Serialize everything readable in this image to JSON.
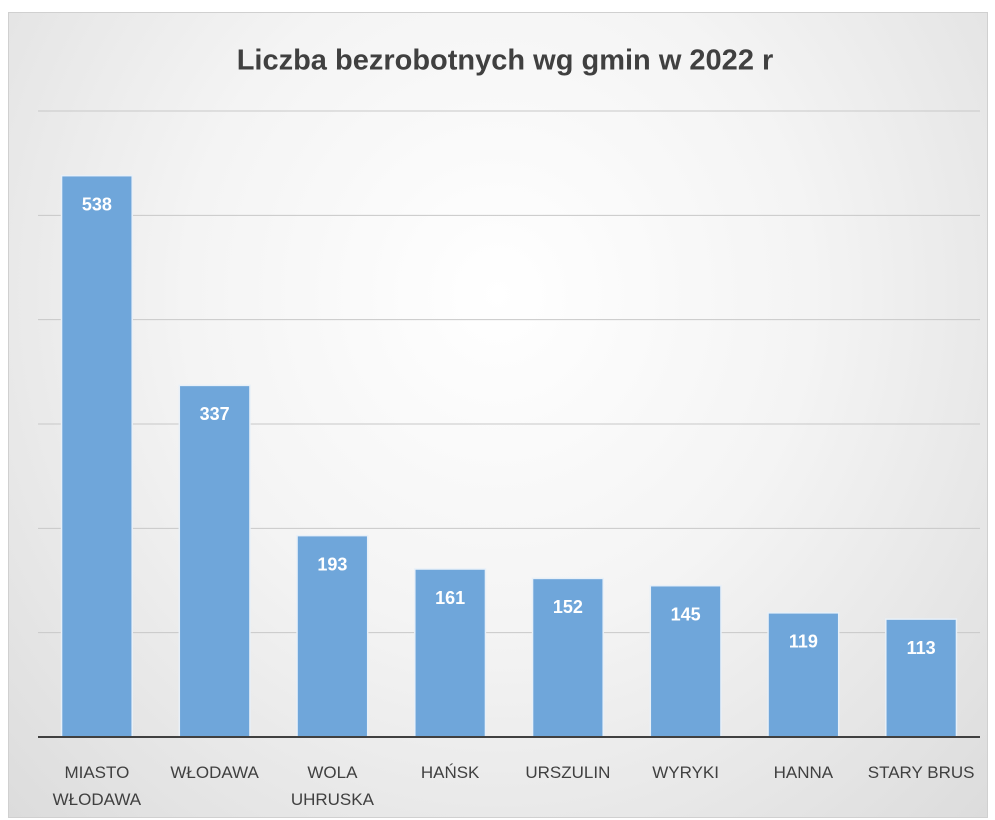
{
  "chart_data": {
    "type": "bar",
    "title": "Liczba bezrobotnych wg gmin w 2022 r",
    "categories": [
      "MIASTO WŁODAWA",
      "WŁODAWA",
      "WOLA UHRUSKA",
      "HAŃSK",
      "URSZULIN",
      "WYRYKI",
      "HANNA",
      "STARY BRUS"
    ],
    "values": [
      538,
      337,
      193,
      161,
      152,
      145,
      119,
      113
    ],
    "color": "#6fa6da",
    "ylim": [
      0,
      600
    ],
    "yticks": [
      0,
      100,
      200,
      300,
      400,
      500,
      600
    ],
    "grid": true
  }
}
